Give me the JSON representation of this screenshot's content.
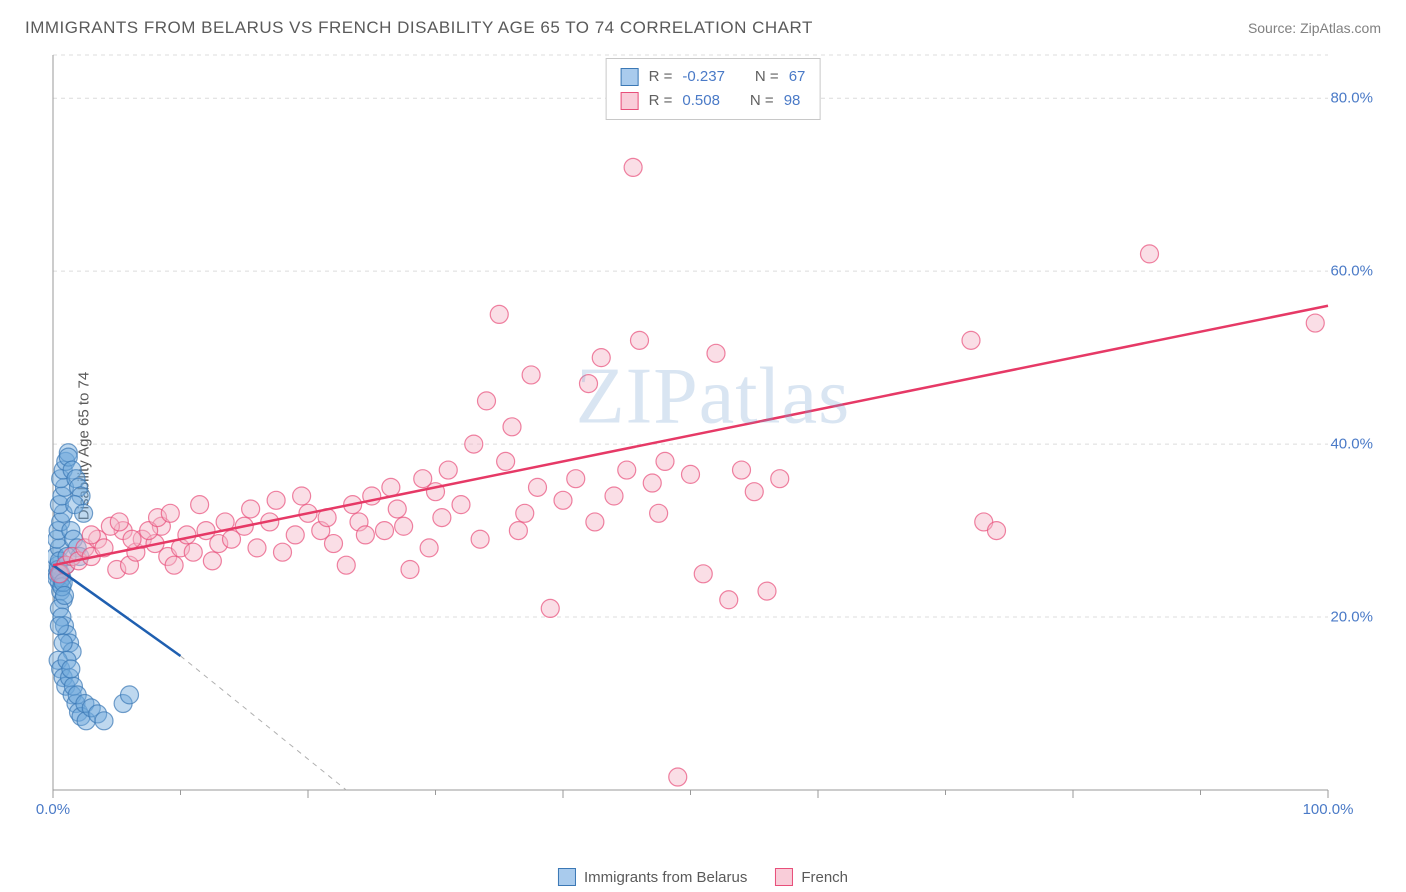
{
  "header": {
    "title": "IMMIGRANTS FROM BELARUS VS FRENCH DISABILITY AGE 65 TO 74 CORRELATION CHART",
    "source": "Source: ZipAtlas.com"
  },
  "chart": {
    "type": "scatter",
    "ylabel": "Disability Age 65 to 74",
    "watermark": "ZIPatlas",
    "background_color": "#ffffff",
    "grid_color": "#dcdcdc",
    "axis_color": "#9a9a9a",
    "text_color": "#5a5a5a",
    "value_color": "#4a7ac7",
    "xlim": [
      0,
      100
    ],
    "ylim": [
      0,
      85
    ],
    "x_ticks_major": [
      0,
      20,
      40,
      60,
      80,
      100
    ],
    "x_ticks_minor": [
      10,
      30,
      50,
      70,
      90
    ],
    "x_tick_labels": {
      "0": "0.0%",
      "100": "100.0%"
    },
    "y_ticks": [
      20,
      40,
      60,
      80
    ],
    "y_tick_labels": {
      "20": "20.0%",
      "40": "40.0%",
      "60": "60.0%",
      "80": "80.0%"
    },
    "marker_radius": 9,
    "marker_opacity": 0.45,
    "series": [
      {
        "name": "Immigrants from Belarus",
        "color": "#6fa8dc",
        "stroke": "#3b78b5",
        "trend_color": "#1f5fb0",
        "R": "-0.237",
        "N": "67",
        "trend": {
          "x1": 0,
          "y1": 26,
          "x2": 10,
          "y2": 15.5,
          "extend_x": 23,
          "extend_y": 0
        },
        "points": [
          [
            0.3,
            25
          ],
          [
            0.5,
            24
          ],
          [
            0.4,
            26
          ],
          [
            0.6,
            23
          ],
          [
            0.8,
            22
          ],
          [
            0.2,
            27
          ],
          [
            0.5,
            28
          ],
          [
            0.7,
            24.5
          ],
          [
            0.3,
            29
          ],
          [
            0.4,
            30
          ],
          [
            0.6,
            31
          ],
          [
            0.8,
            32
          ],
          [
            0.5,
            33
          ],
          [
            0.7,
            34
          ],
          [
            0.9,
            35
          ],
          [
            0.6,
            36
          ],
          [
            0.8,
            37
          ],
          [
            1.0,
            38
          ],
          [
            1.2,
            39
          ],
          [
            0.5,
            21
          ],
          [
            0.7,
            20
          ],
          [
            0.9,
            19
          ],
          [
            1.1,
            18
          ],
          [
            1.3,
            17
          ],
          [
            1.5,
            16
          ],
          [
            1.2,
            38.5
          ],
          [
            1.5,
            37
          ],
          [
            1.8,
            36
          ],
          [
            2.0,
            35
          ],
          [
            2.2,
            34
          ],
          [
            1.7,
            33
          ],
          [
            1.4,
            30
          ],
          [
            1.6,
            29
          ],
          [
            1.9,
            28
          ],
          [
            2.1,
            27
          ],
          [
            2.4,
            32
          ],
          [
            0.4,
            15
          ],
          [
            0.6,
            14
          ],
          [
            0.8,
            13
          ],
          [
            1.0,
            12
          ],
          [
            1.5,
            11
          ],
          [
            1.8,
            10
          ],
          [
            2.0,
            9
          ],
          [
            2.2,
            8.5
          ],
          [
            2.6,
            8
          ],
          [
            1.3,
            13
          ],
          [
            1.6,
            12
          ],
          [
            1.9,
            11
          ],
          [
            2.5,
            10
          ],
          [
            3.0,
            9.5
          ],
          [
            3.5,
            8.8
          ],
          [
            4.0,
            8
          ],
          [
            5.5,
            10
          ],
          [
            6.0,
            11
          ],
          [
            0.5,
            19
          ],
          [
            0.8,
            17
          ],
          [
            1.1,
            15
          ],
          [
            1.4,
            14
          ],
          [
            0.3,
            24.5
          ],
          [
            0.4,
            25.5
          ],
          [
            0.5,
            26.5
          ],
          [
            0.6,
            25
          ],
          [
            0.7,
            23.5
          ],
          [
            0.8,
            24
          ],
          [
            0.9,
            22.5
          ],
          [
            1.0,
            26
          ],
          [
            1.1,
            27
          ]
        ]
      },
      {
        "name": "French",
        "color": "#f5b5c8",
        "stroke": "#e84f7a",
        "trend_color": "#e63966",
        "R": "0.508",
        "N": "98",
        "trend": {
          "x1": 0,
          "y1": 26,
          "x2": 100,
          "y2": 56
        },
        "points": [
          [
            0.5,
            25
          ],
          [
            1,
            26
          ],
          [
            1.5,
            27
          ],
          [
            2,
            26.5
          ],
          [
            2.5,
            28
          ],
          [
            3,
            27
          ],
          [
            3.5,
            29
          ],
          [
            4,
            28
          ],
          [
            5,
            25.5
          ],
          [
            5.5,
            30
          ],
          [
            6,
            26
          ],
          [
            6.5,
            27.5
          ],
          [
            7,
            29
          ],
          [
            8,
            28.5
          ],
          [
            8.5,
            30.5
          ],
          [
            9,
            27
          ],
          [
            9.5,
            26
          ],
          [
            10,
            28
          ],
          [
            10.5,
            29.5
          ],
          [
            11,
            27.5
          ],
          [
            12,
            30
          ],
          [
            12.5,
            26.5
          ],
          [
            13,
            28.5
          ],
          [
            14,
            29
          ],
          [
            15,
            30.5
          ],
          [
            16,
            28
          ],
          [
            17,
            31
          ],
          [
            18,
            27.5
          ],
          [
            19,
            29.5
          ],
          [
            20,
            32
          ],
          [
            21,
            30
          ],
          [
            22,
            28.5
          ],
          [
            23,
            26
          ],
          [
            23.5,
            33
          ],
          [
            24,
            31
          ],
          [
            25,
            34
          ],
          [
            26,
            30
          ],
          [
            26.5,
            35
          ],
          [
            27,
            32.5
          ],
          [
            28,
            25.5
          ],
          [
            29,
            36
          ],
          [
            29.5,
            28
          ],
          [
            30,
            34.5
          ],
          [
            31,
            37
          ],
          [
            32,
            33
          ],
          [
            33,
            40
          ],
          [
            34,
            45
          ],
          [
            35,
            55
          ],
          [
            35.5,
            38
          ],
          [
            36,
            42
          ],
          [
            37,
            32
          ],
          [
            37.5,
            48
          ],
          [
            38,
            35
          ],
          [
            39,
            21
          ],
          [
            40,
            33.5
          ],
          [
            41,
            36
          ],
          [
            42,
            47
          ],
          [
            42.5,
            31
          ],
          [
            43,
            50
          ],
          [
            44,
            34
          ],
          [
            45,
            37
          ],
          [
            45.5,
            72
          ],
          [
            46,
            52
          ],
          [
            47,
            35.5
          ],
          [
            47.5,
            32
          ],
          [
            48,
            38
          ],
          [
            49,
            1.5
          ],
          [
            50,
            36.5
          ],
          [
            51,
            25
          ],
          [
            52,
            50.5
          ],
          [
            53,
            22
          ],
          [
            54,
            37
          ],
          [
            55,
            34.5
          ],
          [
            56,
            23
          ],
          [
            57,
            36
          ],
          [
            72,
            52
          ],
          [
            73,
            31
          ],
          [
            74,
            30
          ],
          [
            86,
            62
          ],
          [
            99,
            54
          ],
          [
            3,
            29.5
          ],
          [
            4.5,
            30.5
          ],
          [
            5.2,
            31
          ],
          [
            6.2,
            29
          ],
          [
            7.5,
            30
          ],
          [
            8.2,
            31.5
          ],
          [
            9.2,
            32
          ],
          [
            11.5,
            33
          ],
          [
            13.5,
            31
          ],
          [
            15.5,
            32.5
          ],
          [
            17.5,
            33.5
          ],
          [
            19.5,
            34
          ],
          [
            21.5,
            31.5
          ],
          [
            24.5,
            29.5
          ],
          [
            27.5,
            30.5
          ],
          [
            30.5,
            31.5
          ],
          [
            33.5,
            29
          ],
          [
            36.5,
            30
          ]
        ]
      }
    ]
  },
  "legend_top": {
    "rows": [
      {
        "swatch_fill": "#a9cbed",
        "swatch_stroke": "#3b78b5",
        "R": "-0.237",
        "N": "67"
      },
      {
        "swatch_fill": "#f9cdd9",
        "swatch_stroke": "#e84f7a",
        "R": "0.508",
        "N": "98"
      }
    ]
  },
  "legend_bottom": {
    "items": [
      {
        "swatch_fill": "#a9cbed",
        "swatch_stroke": "#3b78b5",
        "label": "Immigrants from Belarus"
      },
      {
        "swatch_fill": "#f9cdd9",
        "swatch_stroke": "#e84f7a",
        "label": "French"
      }
    ]
  }
}
